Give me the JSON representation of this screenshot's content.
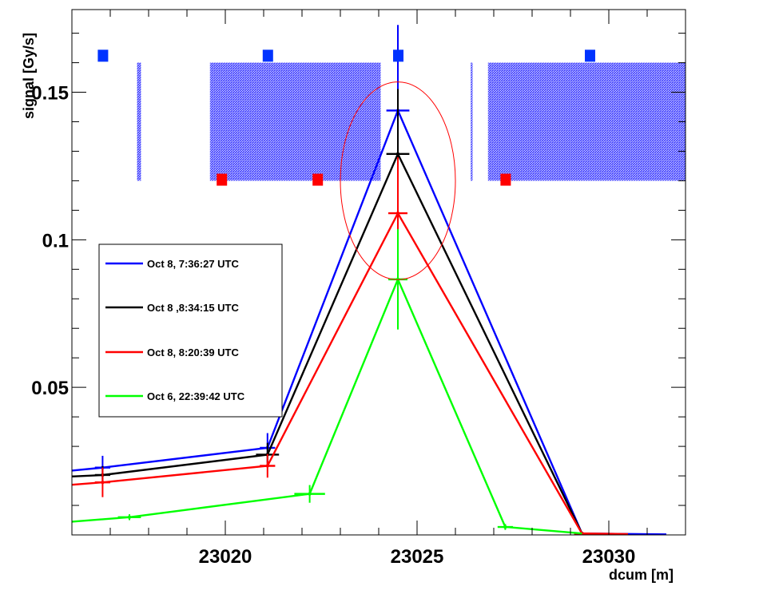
{
  "chart_data": {
    "type": "line",
    "xlabel": "dcum [m]",
    "ylabel": "signal [Gy/s]",
    "xlim": [
      23016.0,
      23032.0
    ],
    "ylim": [
      0.0,
      0.178
    ],
    "x_ticks": [
      23020,
      23025,
      23030
    ],
    "x_tick_labels": [
      "23020",
      "23025",
      "23030"
    ],
    "y_ticks": [
      0.05,
      0.1,
      0.15
    ],
    "y_tick_labels": [
      "0.05",
      "0.1",
      "0.15"
    ],
    "grid": false,
    "legend_position": "left",
    "series": [
      {
        "name": "Oct 8, 7:36:27 UTC",
        "color": "#0000ff",
        "points": [
          {
            "x": 23016.0,
            "y": 0.0218
          },
          {
            "x": 23016.8,
            "y": 0.0228,
            "xerr": 0.2,
            "yerr": 0.004
          },
          {
            "x": 23021.1,
            "y": 0.0295,
            "xerr": 0.2,
            "yerr": 0.005
          },
          {
            "x": 23024.5,
            "y": 0.1438,
            "xerr": 0.3,
            "yerr": 0.029
          },
          {
            "x": 23029.3,
            "y": 0.0005,
            "xerr": 0.2,
            "yerr": 0.0005
          },
          {
            "x": 23031.5,
            "y": 0.0002
          }
        ]
      },
      {
        "name": "Oct 8 ,8:34:15 UTC",
        "color": "#000000",
        "points": [
          {
            "x": 23016.0,
            "y": 0.0198
          },
          {
            "x": 23016.8,
            "y": 0.0203,
            "xerr": 0.2,
            "yerr": 0.003
          },
          {
            "x": 23021.1,
            "y": 0.0272,
            "xerr": 0.3,
            "yerr": 0.004
          },
          {
            "x": 23024.5,
            "y": 0.1291,
            "xerr": 0.3,
            "yerr": 0.022
          },
          {
            "x": 23029.3,
            "y": 0.0005,
            "xerr": 0.2,
            "yerr": 0.0005
          }
        ]
      },
      {
        "name": "Oct 8, 8:20:39 UTC",
        "color": "#ff0000",
        "points": [
          {
            "x": 23016.0,
            "y": 0.017
          },
          {
            "x": 23016.8,
            "y": 0.0178,
            "xerr": 0.2,
            "yerr": 0.005
          },
          {
            "x": 23021.1,
            "y": 0.0234,
            "xerr": 0.2,
            "yerr": 0.004
          },
          {
            "x": 23024.5,
            "y": 0.109,
            "xerr": 0.25,
            "yerr": 0.019
          },
          {
            "x": 23029.3,
            "y": 0.0005,
            "xerr": 0.2,
            "yerr": 0.0005
          },
          {
            "x": 23030.5,
            "y": 0.0003
          }
        ]
      },
      {
        "name": "Oct 6, 22:39:42 UTC",
        "color": "#00ff00",
        "points": [
          {
            "x": 23016.0,
            "y": 0.0045
          },
          {
            "x": 23017.5,
            "y": 0.006,
            "xerr": 0.3,
            "yerr": 0.001
          },
          {
            "x": 23022.2,
            "y": 0.0139,
            "xerr": 0.4,
            "yerr": 0.003
          },
          {
            "x": 23024.5,
            "y": 0.0866,
            "xerr": 0.25,
            "yerr": 0.017
          },
          {
            "x": 23027.3,
            "y": 0.0027,
            "xerr": 0.2,
            "yerr": 0.001
          },
          {
            "x": 23029.3,
            "y": 0.0005
          }
        ]
      }
    ],
    "shaded_regions": [
      {
        "x0": 23017.7,
        "x1": 23017.8,
        "y0": 0.12,
        "y1": 0.16,
        "color": "#6060ff"
      },
      {
        "x0": 23019.6,
        "x1": 23024.05,
        "y0": 0.12,
        "y1": 0.16,
        "color": "#6060ff"
      },
      {
        "x0": 23026.4,
        "x1": 23026.45,
        "y0": 0.12,
        "y1": 0.16,
        "color": "#6060ff"
      },
      {
        "x0": 23026.85,
        "x1": 23032.0,
        "y0": 0.12,
        "y1": 0.16,
        "color": "#6060ff"
      }
    ],
    "markers": [
      {
        "x": 23016.8,
        "y": 0.1625,
        "color": "#0033ff"
      },
      {
        "x": 23021.1,
        "y": 0.1625,
        "color": "#0033ff"
      },
      {
        "x": 23024.5,
        "y": 0.1625,
        "color": "#0033ff"
      },
      {
        "x": 23029.5,
        "y": 0.1625,
        "color": "#0033ff"
      },
      {
        "x": 23019.9,
        "y": 0.1205,
        "color": "#ff0000"
      },
      {
        "x": 23022.4,
        "y": 0.1205,
        "color": "#ff0000"
      },
      {
        "x": 23027.3,
        "y": 0.1205,
        "color": "#ff0000"
      }
    ],
    "annotation_ellipse": {
      "cx": 23024.5,
      "cy": 0.12,
      "rx": 1.5,
      "ry": 0.0335,
      "color": "#ff0000"
    }
  }
}
